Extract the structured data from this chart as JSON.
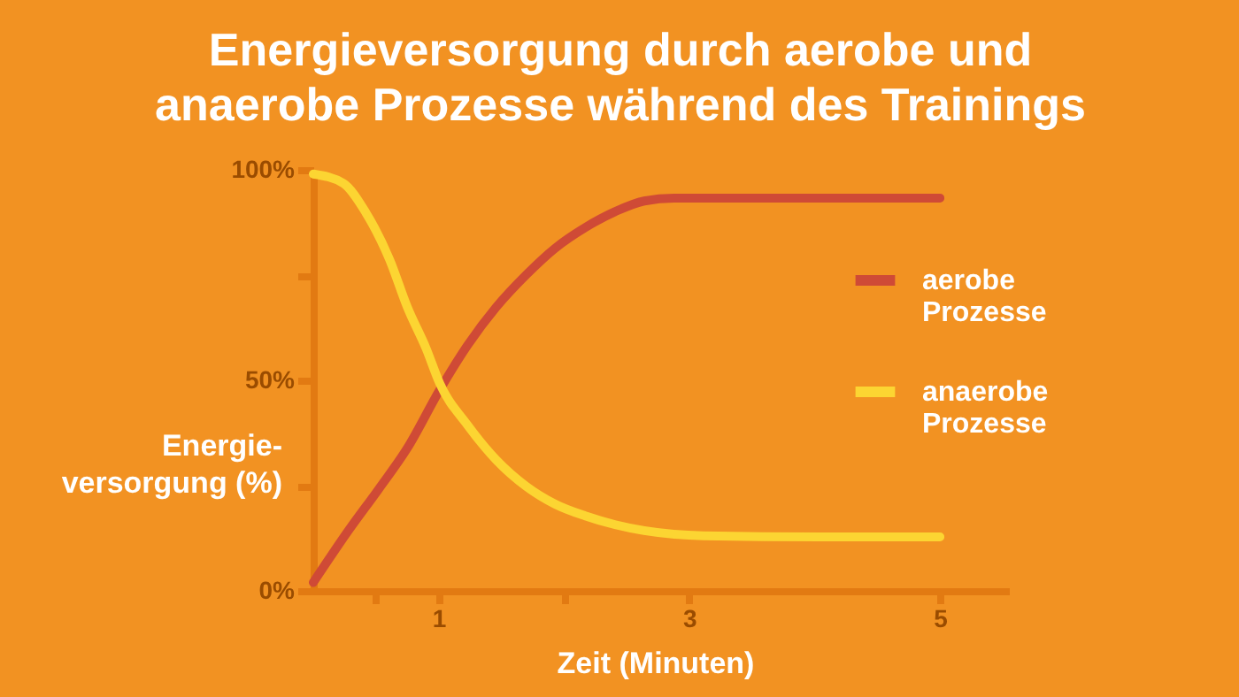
{
  "chart_data": {
    "type": "line",
    "title": "Energieversorgung durch aerobe und anaerobe Prozesse während des Trainings",
    "xlabel": "Zeit (Minuten)",
    "ylabel": "Energie-versorgung (%)",
    "xlim": [
      0,
      5.55
    ],
    "ylim": [
      0,
      100
    ],
    "xticks": [
      {
        "value": 0.5,
        "label": null
      },
      1,
      {
        "value": 2,
        "label": null
      },
      3,
      5
    ],
    "yticks": [
      {
        "value": 0,
        "label": "0%"
      },
      {
        "value": 25,
        "label": null
      },
      {
        "value": 50,
        "label": "50%"
      },
      {
        "value": 75,
        "label": null
      },
      {
        "value": 100,
        "label": "100%"
      }
    ],
    "grid": false,
    "legend": "right",
    "marker": "none",
    "line_style": "solid",
    "series": [
      {
        "name": "aerobe Prozesse",
        "color": "#cf4a36",
        "x": [
          0,
          0.28,
          0.52,
          0.75,
          1.01,
          1.23,
          1.46,
          1.7,
          1.93,
          2.17,
          2.41,
          2.64,
          2.88,
          5
        ],
        "values": [
          2,
          14.3,
          24.1,
          33.9,
          47.8,
          58.3,
          67.4,
          75.1,
          81.4,
          86.3,
          90.1,
          92.6,
          93.3,
          93.3
        ]
      },
      {
        "name": "anaerobe Prozesse",
        "color": "#fcd532",
        "x": [
          0,
          0.24,
          0.42,
          0.61,
          0.75,
          0.9,
          1.01,
          1.23,
          1.46,
          1.7,
          1.93,
          2.17,
          2.41,
          2.64,
          3.11,
          4.06,
          5
        ],
        "values": [
          99,
          96.8,
          89.8,
          78.6,
          67.4,
          57.6,
          49.2,
          39.4,
          31.1,
          24.8,
          20.6,
          17.8,
          15.7,
          14.3,
          13.1,
          12.8,
          12.8
        ]
      }
    ]
  }
}
